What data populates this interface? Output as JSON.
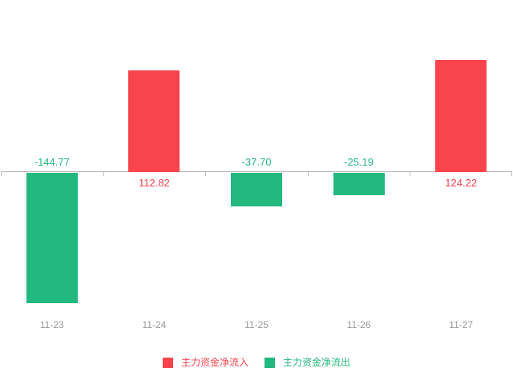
{
  "chart_data": {
    "type": "bar",
    "title": "",
    "xlabel": "",
    "ylabel": "",
    "categories": [
      "11-23",
      "11-24",
      "11-25",
      "11-26",
      "11-27"
    ],
    "values": [
      -144.77,
      112.82,
      -37.7,
      -25.19,
      124.22
    ],
    "value_labels": [
      "-144.77",
      "112.82",
      "-37.70",
      "-25.19",
      "124.22"
    ],
    "series": [
      {
        "name": "主力资金净流入",
        "color": "#F9444E",
        "values": [
          null,
          112.82,
          null,
          null,
          124.22
        ]
      },
      {
        "name": "主力资金净流出",
        "color": "#22B87E",
        "values": [
          -144.77,
          null,
          -37.7,
          -25.19,
          null
        ]
      }
    ],
    "ylim": [
      -160,
      140
    ],
    "grid": false,
    "legend_position": "bottom",
    "axis_color": "#BBBBBB",
    "tick_label_color": "#999999",
    "background_color": "#FFFFFF"
  },
  "legend": {
    "inflow_label": "主力资金净流入",
    "outflow_label": "主力资金净流出"
  },
  "colors": {
    "inflow": "#F9444E",
    "outflow": "#22B87E"
  }
}
